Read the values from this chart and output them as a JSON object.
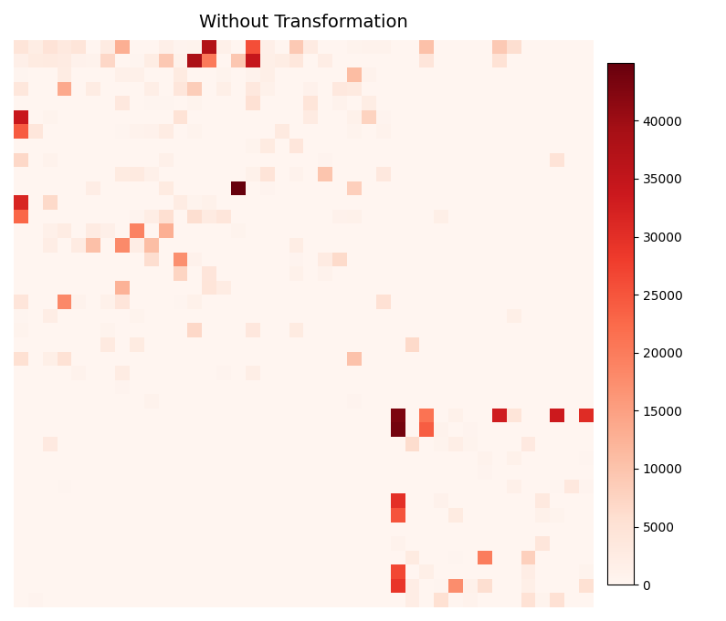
{
  "title": "Without Transformation",
  "cmap": "Reds",
  "vmin": 0,
  "vmax": 45000,
  "colorbar_ticks": [
    0,
    5000,
    10000,
    15000,
    20000,
    25000,
    30000,
    35000,
    40000
  ],
  "n_rows": 40,
  "n_cols": 40,
  "figsize": [
    7.95,
    6.81
  ],
  "dpi": 100,
  "title_fontsize": 14
}
